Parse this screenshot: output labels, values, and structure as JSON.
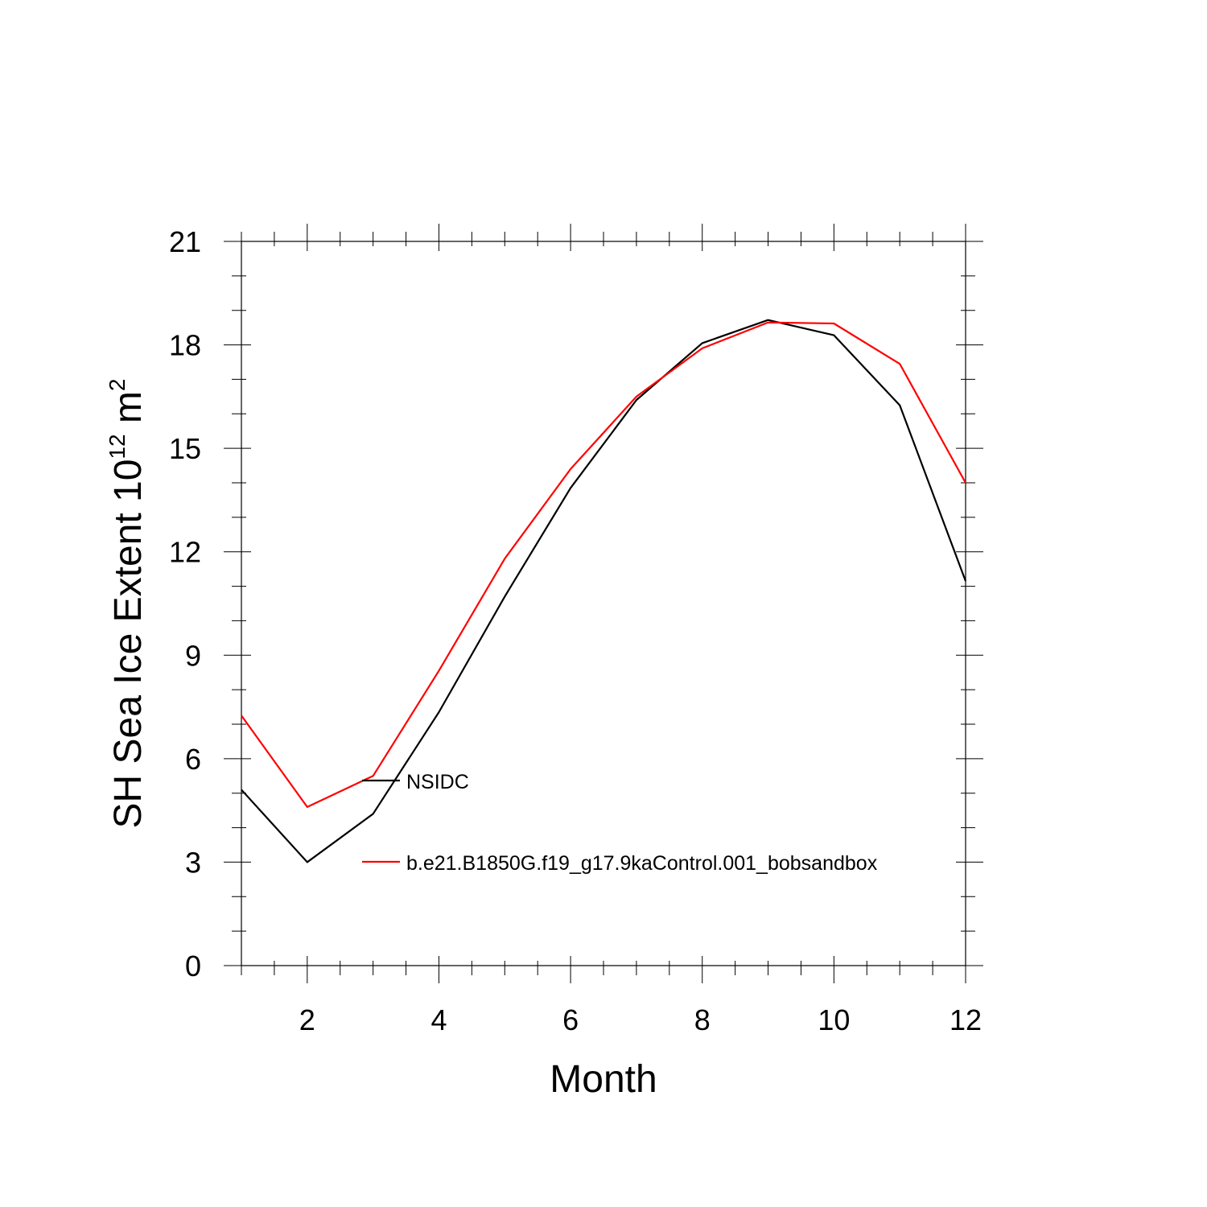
{
  "chart_data": {
    "type": "line",
    "title": "",
    "xlabel": "Month",
    "ylabel": {
      "main": "SH Sea Ice Extent 10",
      "superscript1": "12",
      "unit": " m",
      "superscript2": "2"
    },
    "xlim": [
      1,
      12
    ],
    "ylim": [
      0,
      21
    ],
    "x_ticks": [
      2,
      4,
      6,
      8,
      10,
      12
    ],
    "x_tick_labels": [
      "2",
      "4",
      "6",
      "8",
      "10",
      "12"
    ],
    "y_ticks": [
      0,
      3,
      6,
      9,
      12,
      15,
      18,
      21
    ],
    "y_tick_labels": [
      "0",
      "3",
      "6",
      "9",
      "12",
      "15",
      "18",
      "21"
    ],
    "grid": false,
    "x": [
      1,
      2,
      3,
      4,
      5,
      6,
      7,
      8,
      9,
      10,
      11,
      12
    ],
    "series": [
      {
        "name": "NSIDC",
        "color": "#000000",
        "values": [
          5.1,
          3.0,
          4.4,
          7.35,
          10.7,
          13.85,
          16.4,
          18.05,
          18.72,
          18.28,
          16.25,
          11.15
        ]
      },
      {
        "name": "b.e21.B1850G.f19_g17.9kaControl.001_bobsandbox",
        "color": "#ff0000",
        "values": [
          7.25,
          4.6,
          5.5,
          8.55,
          11.8,
          14.4,
          16.5,
          17.9,
          18.65,
          18.62,
          17.45,
          14.0
        ]
      }
    ],
    "legend_placement": "inside, lower-center"
  }
}
